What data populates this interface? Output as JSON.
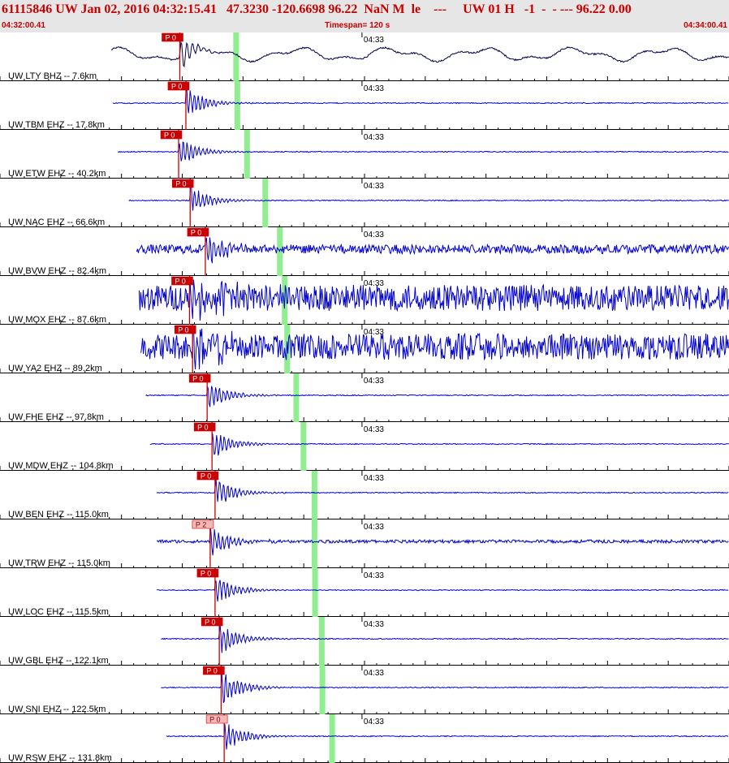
{
  "header": {
    "title": "61115846 UW Jan 02, 2016 04:32:15.41   47.3230 -120.6698 96.22  NaN M  le    ---     UW 01 H   -1  -  - --- 96.22 0.00",
    "start_time": "04:32:00.41",
    "timespan": "Timespan= 120 s",
    "end_time": "04:34:00.41"
  },
  "chart_data": {
    "type": "line",
    "xlabel": "",
    "ylabel": "",
    "x_range_s": [
      0,
      120
    ],
    "tick_label": "04:33",
    "tick_time_s": 59.59,
    "colors": {
      "trace": "#0000d0",
      "trace_first": "#000050",
      "pick": "#cc0000",
      "pick_light": "#f4b8b8",
      "swave": "#90ee90",
      "grid": "#000000"
    },
    "channels": [
      {
        "label": "UW LTY BHZ -- 7.6km",
        "trace_start_s": 18.3,
        "p_time_s": 29.6,
        "s_time_s": 38.8,
        "pick_label": "P 0",
        "pick_style": "red",
        "amplitude": "small",
        "noise": "long-period"
      },
      {
        "label": "UW TBM EHZ -- 17.8km",
        "trace_start_s": 18.6,
        "p_time_s": 30.6,
        "s_time_s": 39.0,
        "pick_label": "P 0",
        "pick_style": "red",
        "amplitude": "medium",
        "noise": "low"
      },
      {
        "label": "UW ETW EHZ -- 40.2km",
        "trace_start_s": 19.4,
        "p_time_s": 29.4,
        "s_time_s": 40.6,
        "pick_label": "P 0",
        "pick_style": "red",
        "amplitude": "medium",
        "noise": "low"
      },
      {
        "label": "UW NAC EHZ -- 66.6km",
        "trace_start_s": 21.2,
        "p_time_s": 31.3,
        "s_time_s": 43.6,
        "pick_label": "P 0",
        "pick_style": "red",
        "amplitude": "medium",
        "noise": "low"
      },
      {
        "label": "UW BVW EHZ -- 82.4km",
        "trace_start_s": 22.5,
        "p_time_s": 33.8,
        "s_time_s": 46.0,
        "pick_label": "P 0",
        "pick_style": "red",
        "amplitude": "medium",
        "noise": "high"
      },
      {
        "label": "UW MOX EHZ -- 87.6km",
        "trace_start_s": 22.9,
        "p_time_s": 31.2,
        "s_time_s": 46.8,
        "pick_label": "P 0",
        "pick_style": "red",
        "amplitude": "large",
        "noise": "very-high"
      },
      {
        "label": "UW YA2 EHZ -- 89.2km",
        "trace_start_s": 23.2,
        "p_time_s": 31.7,
        "s_time_s": 47.2,
        "pick_label": "P 0",
        "pick_style": "red",
        "amplitude": "large",
        "noise": "very-high"
      },
      {
        "label": "UW FHE EHZ -- 97.8km",
        "trace_start_s": 24.0,
        "p_time_s": 34.1,
        "s_time_s": 48.7,
        "pick_label": "P 0",
        "pick_style": "red",
        "amplitude": "medium",
        "noise": "low"
      },
      {
        "label": "UW MDW EHZ -- 104.8km",
        "trace_start_s": 24.7,
        "p_time_s": 34.9,
        "s_time_s": 49.9,
        "pick_label": "P 0",
        "pick_style": "red",
        "amplitude": "medium",
        "noise": "low"
      },
      {
        "label": "UW BEN EHZ -- 115.0km",
        "trace_start_s": 25.8,
        "p_time_s": 35.4,
        "s_time_s": 51.7,
        "pick_label": "P 0",
        "pick_style": "red",
        "amplitude": "medium",
        "noise": "low"
      },
      {
        "label": "UW TRW EHZ -- 115.0km",
        "trace_start_s": 25.8,
        "p_time_s": 34.6,
        "s_time_s": 51.7,
        "pick_label": "P 2",
        "pick_style": "light",
        "amplitude": "medium",
        "noise": "medium"
      },
      {
        "label": "UW LOC EHZ -- 115.5km",
        "trace_start_s": 25.8,
        "p_time_s": 35.4,
        "s_time_s": 51.8,
        "pick_label": "P 0",
        "pick_style": "red",
        "amplitude": "medium",
        "noise": "low"
      },
      {
        "label": "UW GBL EHZ -- 122.1km",
        "trace_start_s": 26.5,
        "p_time_s": 36.1,
        "s_time_s": 52.9,
        "pick_label": "P 0",
        "pick_style": "red",
        "amplitude": "medium",
        "noise": "low"
      },
      {
        "label": "UW SNI EHZ -- 122.5km",
        "trace_start_s": 26.5,
        "p_time_s": 36.4,
        "s_time_s": 53.0,
        "pick_label": "P 0",
        "pick_style": "red",
        "amplitude": "large",
        "noise": "low"
      },
      {
        "label": "UW RSW EHZ -- 131.8km",
        "trace_start_s": 27.4,
        "p_time_s": 36.9,
        "s_time_s": 54.6,
        "pick_label": "P 0",
        "pick_style": "light",
        "amplitude": "medium",
        "noise": "low"
      }
    ]
  }
}
